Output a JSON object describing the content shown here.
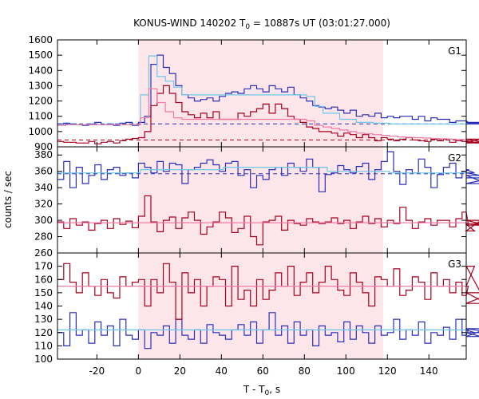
{
  "chart_data": {
    "type": "line",
    "title_main": "KONUS-WIND 140202 T",
    "title_sub": "0",
    "title_rest": " = 10887s UT (03:01:27.000)",
    "xlabel_main": "T - T",
    "xlabel_sub": "0",
    "xlabel_rest": ", s",
    "ylabel": "counts / sec",
    "xlim": [
      -39,
      158
    ],
    "xticks": [
      -20,
      0,
      20,
      40,
      60,
      80,
      100,
      120,
      140
    ],
    "shaded_interval": [
      0,
      118
    ],
    "colors": {
      "shade": "#fde6ea",
      "blue": "#2a2fb8",
      "red": "#a5001c",
      "cyan": "#6cc7e8",
      "pink": "#ef7aa6"
    },
    "panels": [
      {
        "label": "G1",
        "ylim": [
          900,
          1600
        ],
        "yticks": [
          900,
          1000,
          1100,
          1200,
          1300,
          1400,
          1500,
          1600
        ],
        "series": [
          {
            "color_key": "blue",
            "dt": 3,
            "values": [
              1050,
              1055,
              1050,
              1045,
              1040,
              1050,
              1060,
              1045,
              1050,
              1040,
              1055,
              1060,
              1040,
              1060,
              1100,
              1440,
              1500,
              1420,
              1380,
              1300,
              1240,
              1220,
              1200,
              1210,
              1220,
              1200,
              1230,
              1250,
              1260,
              1250,
              1280,
              1300,
              1280,
              1260,
              1300,
              1280,
              1260,
              1290,
              1240,
              1220,
              1200,
              1170,
              1160,
              1150,
              1160,
              1140,
              1120,
              1140,
              1100,
              1110,
              1100,
              1120,
              1090,
              1100,
              1090,
              1100,
              1100,
              1080,
              1100,
              1070,
              1090,
              1080,
              1080,
              1060,
              1070,
              1070,
              1060,
              1050,
              1060,
              1060,
              1050
            ]
          },
          {
            "color_key": "red",
            "dt": 3,
            "values": [
              935,
              930,
              930,
              925,
              925,
              935,
              920,
              930,
              935,
              925,
              940,
              950,
              955,
              960,
              1000,
              1170,
              1250,
              1300,
              1250,
              1190,
              1130,
              1110,
              1090,
              1120,
              1090,
              1130,
              1080,
              1080,
              1080,
              1120,
              1100,
              1130,
              1150,
              1180,
              1120,
              1180,
              1150,
              1100,
              1080,
              1060,
              1030,
              1020,
              1000,
              1000,
              990,
              970,
              990,
              980,
              960,
              980,
              960,
              940,
              960,
              950,
              940,
              950,
              960,
              945,
              940,
              935,
              950,
              940,
              950,
              930,
              940,
              935,
              940,
              930,
              950,
              925,
              930
            ]
          },
          {
            "color_key": "cyan",
            "dt": 4,
            "values": [
              1040,
              1045,
              1045,
              1045,
              1045,
              1045,
              1045,
              1045,
              1045,
              1045,
              1240,
              1495,
              1360,
              1330,
              1290,
              1240,
              1240,
              1240,
              1240,
              1240,
              1240,
              1240,
              1240,
              1240,
              1240,
              1240,
              1240,
              1240,
              1240,
              1240,
              1230,
              1165,
              1120,
              1120,
              1080,
              1080,
              1060,
              1060,
              1055,
              1055,
              1050,
              1050,
              1050,
              1050,
              1050,
              1050,
              1050,
              1050,
              1050,
              1050
            ]
          },
          {
            "color_key": "pink",
            "dt": 4,
            "values": [
              1040,
              1045,
              1045,
              1045,
              1045,
              1045,
              1045,
              1045,
              1045,
              1045,
              1090,
              1280,
              1190,
              1130,
              1090,
              1080,
              1080,
              1080,
              1080,
              1080,
              1080,
              1080,
              1080,
              1080,
              1080,
              1080,
              1080,
              1080,
              1080,
              1080,
              1070,
              1040,
              1030,
              1020,
              1010,
              1000,
              990,
              985,
              980,
              975,
              970,
              965,
              962,
              960,
              958,
              955,
              953,
              950,
              948,
              946
            ]
          }
        ],
        "baselines": [
          {
            "color_key": "blue",
            "value": 1050,
            "dashed": true
          },
          {
            "color_key": "red",
            "value": 945,
            "dashed": true
          }
        ]
      },
      {
        "label": "G2",
        "ylim": [
          260,
          390
        ],
        "yticks": [
          260,
          280,
          300,
          320,
          340,
          360,
          380
        ],
        "series": [
          {
            "color_key": "blue",
            "dt": 3,
            "values": [
              350,
              372,
              340,
              365,
              345,
              355,
              368,
              350,
              362,
              365,
              355,
              358,
              352,
              370,
              365,
              358,
              372,
              360,
              370,
              368,
              345,
              362,
              365,
              370,
              374,
              368,
              360,
              370,
              372,
              355,
              362,
              340,
              355,
              350,
              362,
              365,
              355,
              370,
              365,
              360,
              375,
              365,
              335,
              356,
              358,
              367,
              362,
              358,
              366,
              370,
              350,
              362,
              372,
              384,
              360,
              344,
              362,
              358,
              375,
              365,
              340,
              356,
              365,
              370,
              352,
              360,
              362,
              358,
              355,
              345,
              352
            ]
          },
          {
            "color_key": "red",
            "dt": 3,
            "values": [
              298,
              290,
              302,
              294,
              298,
              288,
              296,
              300,
              290,
              302,
              295,
              299,
              291,
              305,
              330,
              298,
              286,
              300,
              304,
              290,
              303,
              310,
              300,
              283,
              292,
              298,
              310,
              303,
              285,
              290,
              305,
              280,
              270,
              298,
              300,
              305,
              288,
              300,
              296,
              294,
              302,
              298,
              296,
              298,
              303,
              296,
              300,
              290,
              298,
              305,
              296,
              302,
              292,
              300,
              296,
              316,
              300,
              290,
              298,
              302,
              294,
              300,
              300,
              292,
              302,
              310,
              295,
              287,
              300,
              294,
              296
            ]
          },
          {
            "color_key": "cyan",
            "dt": 10,
            "values": [
              358,
              358,
              358,
              358,
              362,
              362,
              362,
              362,
              365,
              365,
              365,
              365,
              365,
              360,
              360,
              360,
              358,
              358,
              358,
              358
            ]
          },
          {
            "color_key": "pink",
            "dt": 10,
            "values": [
              297,
              297,
              297,
              297,
              297,
              297,
              297,
              297,
              297,
              297,
              297,
              297,
              297,
              297,
              297,
              297,
              297,
              297,
              297,
              297
            ]
          }
        ],
        "baselines": [
          {
            "color_key": "blue",
            "value": 357,
            "dashed": true
          }
        ]
      },
      {
        "label": "G3",
        "ylim": [
          100,
          180
        ],
        "yticks": [
          100,
          110,
          120,
          130,
          140,
          150,
          160,
          170
        ],
        "series": [
          {
            "color_key": "blue",
            "dt": 3,
            "values": [
              120,
              110,
              135,
              118,
              122,
              112,
              128,
              118,
              125,
              110,
              130,
              118,
              115,
              122,
              108,
              120,
              118,
              125,
              112,
              130,
              118,
              115,
              122,
              112,
              126,
              120,
              118,
              115,
              122,
              126,
              118,
              128,
              112,
              122,
              135,
              118,
              125,
              112,
              128,
              118,
              122,
              110,
              125,
              118,
              120,
              113,
              128,
              115,
              125,
              120,
              112,
              125,
              118,
              120,
              130,
              115,
              122,
              118,
              128,
              112,
              120,
              118,
              124,
              115,
              130,
              118,
              122,
              120,
              117,
              123,
              120
            ]
          },
          {
            "color_key": "red",
            "dt": 3,
            "values": [
              160,
              172,
              158,
              150,
              165,
              155,
              148,
              160,
              150,
              146,
              162,
              155,
              158,
              160,
              140,
              160,
              150,
              172,
              158,
              130,
              165,
              150,
              160,
              140,
              155,
              162,
              160,
              140,
              170,
              145,
              152,
              140,
              160,
              145,
              152,
              165,
              155,
              170,
              148,
              158,
              165,
              150,
              158,
              170,
              160,
              152,
              148,
              165,
              158,
              150,
              140,
              162,
              160,
              155,
              168,
              148,
              152,
              162,
              158,
              145,
              165,
              155,
              160,
              150,
              158,
              148,
              155,
              170,
              150,
              142,
              150
            ]
          },
          {
            "color_key": "cyan",
            "dt": 10,
            "values": [
              122,
              122,
              122,
              122,
              122,
              122,
              122,
              122,
              122,
              122,
              122,
              122,
              122,
              122,
              122,
              122,
              122,
              122,
              122,
              122
            ]
          },
          {
            "color_key": "pink",
            "dt": 10,
            "values": [
              155,
              155,
              155,
              155,
              155,
              155,
              155,
              155,
              155,
              155,
              155,
              155,
              155,
              155,
              155,
              155,
              155,
              155,
              155,
              155
            ]
          }
        ],
        "baselines": []
      }
    ]
  }
}
